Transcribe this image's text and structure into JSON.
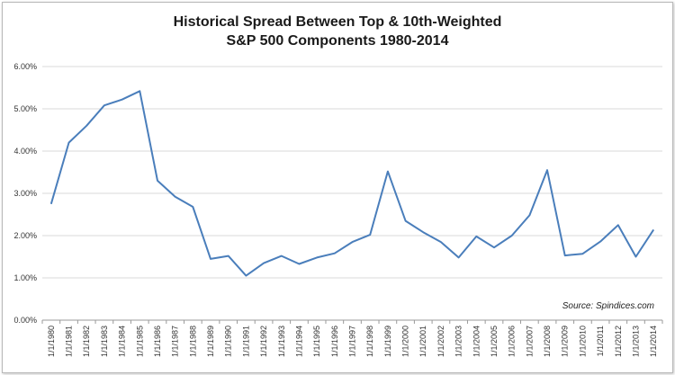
{
  "chart_data": {
    "type": "line",
    "title_line1": "Historical Spread Between Top & 10th-Weighted",
    "title_line2": "S&P 500 Components 1980-2014",
    "source": "Source: Spindices.com",
    "ylim": [
      0,
      6
    ],
    "yticks": [
      "0.00%",
      "1.00%",
      "2.00%",
      "3.00%",
      "4.00%",
      "5.00%",
      "6.00%"
    ],
    "ytick_values": [
      0,
      1,
      2,
      3,
      4,
      5,
      6
    ],
    "grid": "horizontal",
    "line_color": "#4a7ebb",
    "x": [
      "1/1/1980",
      "1/1/1981",
      "1/1/1982",
      "1/1/1983",
      "1/1/1984",
      "1/1/1985",
      "1/1/1986",
      "1/1/1987",
      "1/1/1988",
      "1/1/1989",
      "1/1/1990",
      "1/1/1991",
      "1/1/1992",
      "1/1/1993",
      "1/1/1994",
      "1/1/1995",
      "1/1/1996",
      "1/1/1997",
      "1/1/1998",
      "1/1/1999",
      "1/1/2000",
      "1/1/2001",
      "1/1/2002",
      "1/1/2003",
      "1/1/2004",
      "1/1/2005",
      "1/1/2006",
      "1/1/2007",
      "1/1/2008",
      "1/1/2009",
      "1/1/2010",
      "1/1/2011",
      "1/1/2012",
      "1/1/2013",
      "1/1/2014"
    ],
    "values": [
      2.75,
      4.2,
      4.6,
      5.08,
      5.22,
      5.42,
      3.3,
      2.92,
      2.68,
      1.45,
      1.52,
      1.05,
      1.35,
      1.52,
      1.33,
      1.48,
      1.58,
      1.85,
      2.02,
      3.52,
      2.35,
      2.08,
      1.85,
      1.48,
      1.98,
      1.72,
      2.0,
      2.48,
      3.55,
      1.53,
      1.57,
      1.86,
      2.25,
      1.5,
      2.14
    ]
  }
}
